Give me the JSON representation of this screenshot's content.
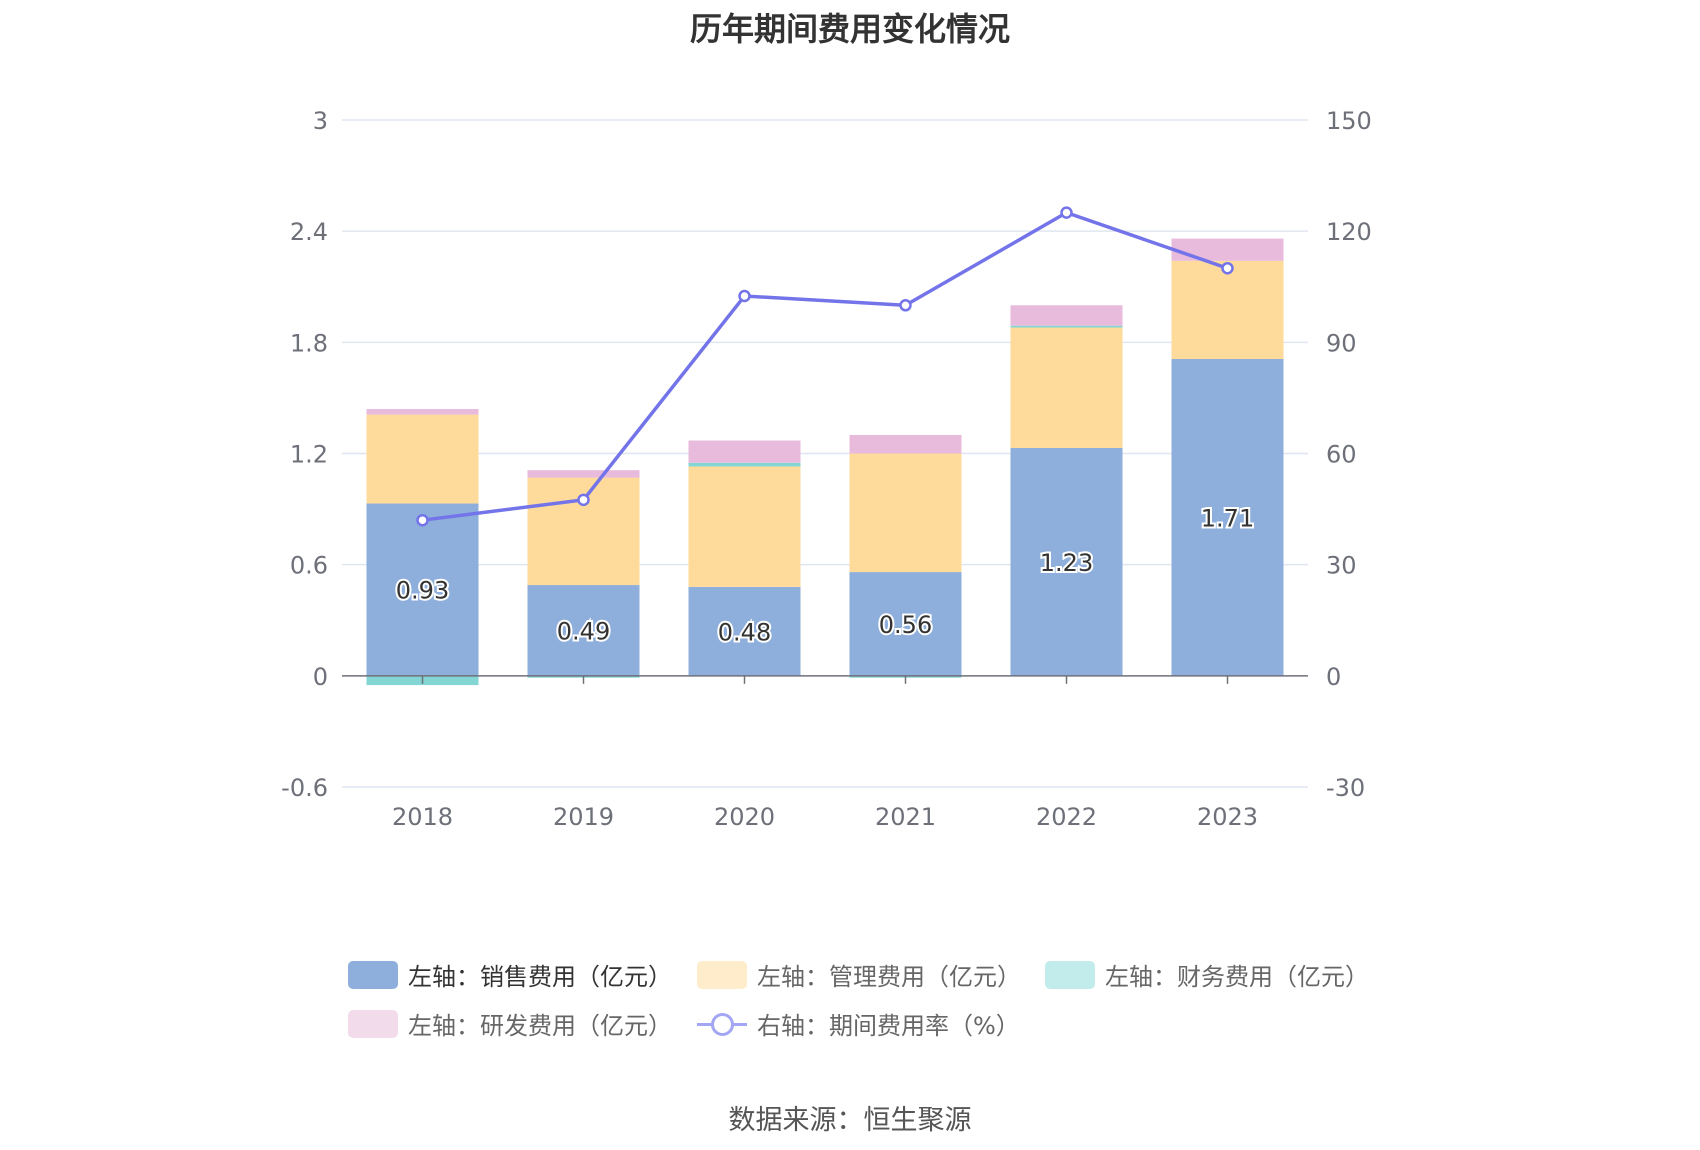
{
  "chart_data": {
    "type": "bar",
    "title": "历年期间费用变化情况",
    "categories": [
      "2018",
      "2019",
      "2020",
      "2021",
      "2022",
      "2023"
    ],
    "stacked": true,
    "y_left": {
      "ylim": [
        -0.6,
        3
      ],
      "ticks": [
        "-0.6",
        "0",
        "0.6",
        "1.2",
        "1.8",
        "2.4",
        "3"
      ]
    },
    "y_right": {
      "ylim": [
        -30,
        150
      ],
      "ticks": [
        "-30",
        "0",
        "30",
        "60",
        "90",
        "120",
        "150"
      ]
    },
    "grid": true,
    "legend_position": "bottom",
    "series": [
      {
        "name": "左轴：销售费用（亿元）",
        "axis": "left",
        "type": "bar",
        "color": "#8eaedb",
        "values": [
          0.93,
          0.49,
          0.48,
          0.56,
          1.23,
          1.71
        ],
        "labels": [
          "0.93",
          "0.49",
          "0.48",
          "0.56",
          "1.23",
          "1.71"
        ]
      },
      {
        "name": "左轴：管理费用（亿元）",
        "axis": "left",
        "type": "bar",
        "color": "#fedb9a",
        "legend_color": "#ffeccb",
        "values": [
          0.48,
          0.58,
          0.65,
          0.64,
          0.65,
          0.53
        ]
      },
      {
        "name": "左轴：财务费用（亿元）",
        "axis": "left",
        "type": "bar",
        "color": "#84d6d4",
        "legend_color": "#c2eceb",
        "values": [
          -0.05,
          -0.01,
          0.02,
          -0.01,
          0.01,
          0.0
        ]
      },
      {
        "name": "左轴：研发费用（亿元）",
        "axis": "left",
        "type": "bar",
        "color": "#e8badc",
        "legend_color": "#f2dcec",
        "values": [
          0.03,
          0.04,
          0.12,
          0.1,
          0.11,
          0.12
        ]
      },
      {
        "name": "右轴：期间费用率（%）",
        "axis": "right",
        "type": "line",
        "color": "#7474ea",
        "values": [
          42.0,
          47.5,
          102.5,
          100.0,
          125.0,
          110.0
        ]
      }
    ],
    "source": "数据来源：恒生聚源"
  }
}
